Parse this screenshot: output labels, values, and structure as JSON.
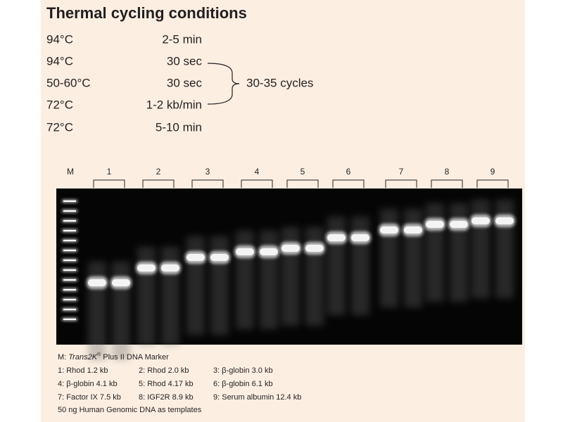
{
  "title": "Thermal cycling conditions",
  "conditions": [
    {
      "temp": "94°C",
      "time": "2-5 min"
    },
    {
      "temp": "94°C",
      "time": "30 sec"
    },
    {
      "temp": "50-60°C",
      "time": "30 sec"
    },
    {
      "temp": "72°C",
      "time": "1-2 kb/min"
    },
    {
      "temp": "72°C",
      "time": "5-10 min"
    }
  ],
  "cycles": "30-35 cycles",
  "lanes": [
    "M",
    "1",
    "2",
    "3",
    "4",
    "5",
    "6",
    "7",
    "8",
    "9"
  ],
  "legend": {
    "marker": {
      "prefix": "M: ",
      "name": "Trans2K",
      "mark": "®",
      "suffix": " Plus II DNA Marker"
    },
    "items": [
      "1: Rhod 1.2 kb",
      "2: Rhod 2.0 kb",
      "3: β-globin 3.0 kb",
      "4: β-globin 4.1 kb",
      "5: Rhod 4.17 kb",
      "6: β-globin 6.1 kb",
      "7: Factor IX 7.5 kb",
      "8: IGF2R 8.9 kb",
      "9: Serum albumin 12.4 kb"
    ],
    "note": "50 ng Human Genomic DNA as templates"
  }
}
